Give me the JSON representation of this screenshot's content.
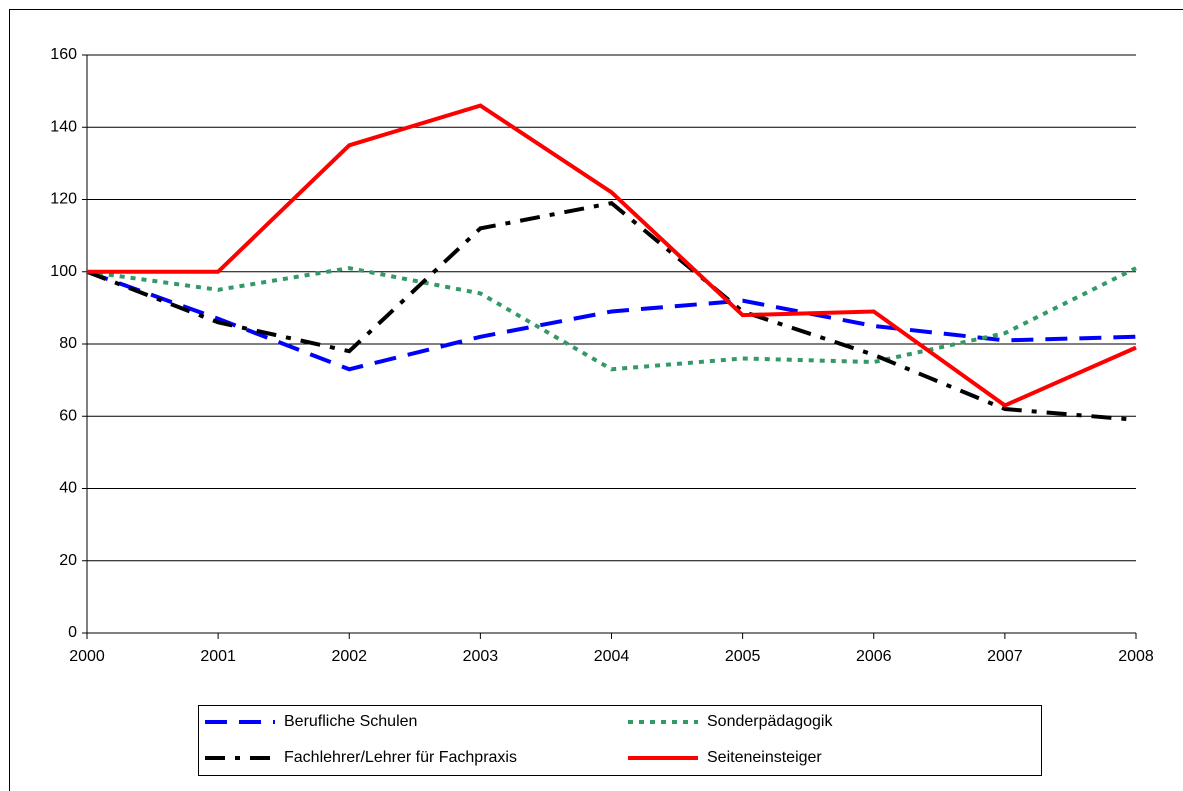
{
  "chart_data": {
    "type": "line",
    "categories": [
      "2000",
      "2001",
      "2002",
      "2003",
      "2004",
      "2005",
      "2006",
      "2007",
      "2008"
    ],
    "series": [
      {
        "name": "Berufliche Schulen",
        "color": "#0000ff",
        "style": "dash",
        "values": [
          100,
          87,
          73,
          82,
          89,
          92,
          85,
          81,
          82
        ]
      },
      {
        "name": "Sonderpädagogik",
        "color": "#339966",
        "style": "dot",
        "values": [
          100,
          95,
          101,
          94,
          73,
          76,
          75,
          83,
          101
        ]
      },
      {
        "name": "Fachlehrer/Lehrer für Fachpraxis",
        "color": "#000000",
        "style": "dashdot",
        "values": [
          100,
          86,
          78,
          112,
          119,
          89,
          77,
          62,
          59
        ]
      },
      {
        "name": "Seiteneinsteiger",
        "color": "#ff0000",
        "style": "solid",
        "values": [
          100,
          100,
          135,
          146,
          122,
          88,
          89,
          63,
          79
        ]
      }
    ],
    "ylim": [
      0,
      160
    ],
    "yticks": [
      0,
      20,
      40,
      60,
      80,
      100,
      120,
      140,
      160
    ],
    "grid": true,
    "legend": "bottom"
  }
}
